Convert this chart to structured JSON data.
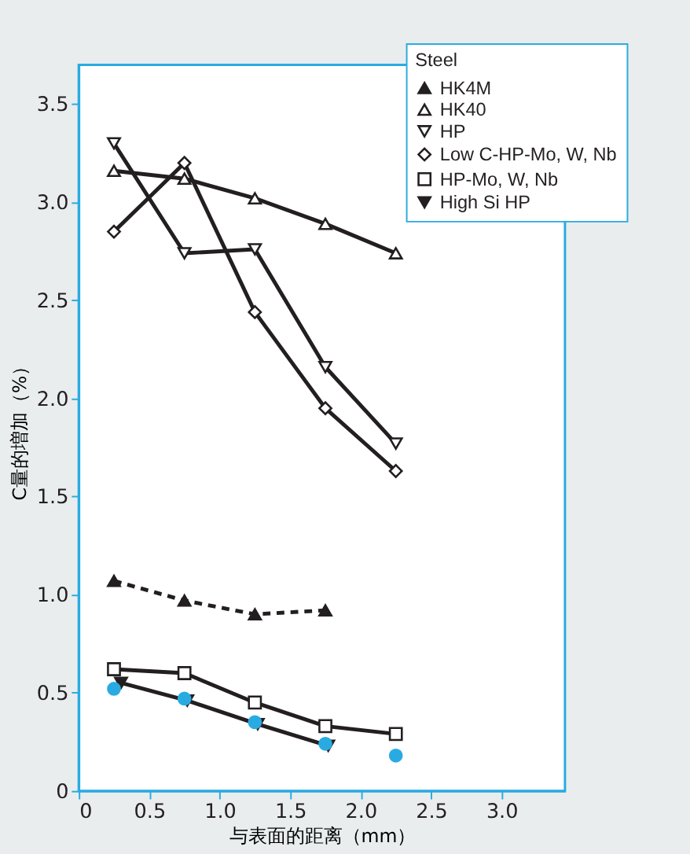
{
  "chart_data": {
    "type": "line",
    "xlabel": "与表面的距离（mm）",
    "ylabel": "C量的増加（%）",
    "legend_title": "Steel",
    "legend": "top right",
    "grid": false,
    "xlim": [
      0,
      3.45
    ],
    "xticks": [
      {
        "value": 0,
        "label": "0"
      },
      0.5,
      {
        "value": 1,
        "label": "1.0"
      },
      1.5,
      {
        "value": 2,
        "label": "2.0"
      },
      2.5,
      {
        "value": 3,
        "label": "3.0"
      }
    ],
    "ylim": [
      0,
      3.7
    ],
    "yticks": [
      {
        "value": 0,
        "label": "0"
      },
      0.5,
      {
        "value": 1,
        "label": "1.0"
      },
      1.5,
      {
        "value": 2,
        "label": "2.0"
      },
      2.5,
      {
        "value": 3,
        "label": "3.0"
      },
      3.5
    ],
    "series": [
      {
        "type": "scatter",
        "color": "#29abe2",
        "marker": "circle",
        "x": [
          0.25,
          0.75,
          1.25,
          1.75,
          2.25
        ],
        "values": [
          0.52,
          0.47,
          0.35,
          0.24,
          0.18
        ]
      },
      {
        "name": "HK4M",
        "color": "#231f20",
        "marker": "triangle",
        "line_style": "dashed",
        "x": [
          0.25,
          0.75,
          1.25,
          1.75
        ],
        "values": [
          1.07,
          0.97,
          0.9,
          0.92
        ]
      },
      {
        "name": "HK40",
        "color": "#231f20",
        "marker": "triangle-open",
        "line_style": "solid",
        "x": [
          0.25,
          0.75,
          1.25,
          1.75,
          2.25
        ],
        "values": [
          3.16,
          3.12,
          3.02,
          2.89,
          2.74
        ]
      },
      {
        "name": "HP",
        "color": "#231f20",
        "marker": "triangle-down-open",
        "line_style": "solid",
        "x": [
          0.25,
          0.75,
          1.25,
          1.75,
          2.25
        ],
        "values": [
          3.3,
          2.74,
          2.76,
          2.16,
          1.77
        ]
      },
      {
        "name": "Low C-HP-Mo, W, Nb",
        "color": "#231f20",
        "marker": "diamond-open",
        "line_style": "solid",
        "x": [
          0.25,
          0.75,
          1.25,
          1.75,
          2.25
        ],
        "values": [
          2.85,
          3.2,
          2.44,
          1.95,
          1.63
        ]
      },
      {
        "name": "HP-Mo, W, Nb",
        "color": "#231f20",
        "marker": "square-open",
        "line_style": "solid",
        "x": [
          0.25,
          0.75,
          1.25,
          1.75,
          2.25
        ],
        "values": [
          0.62,
          0.6,
          0.45,
          0.33,
          0.29
        ]
      },
      {
        "name": "High Si HP",
        "color": "#231f20",
        "marker": "triangle-down",
        "line_style": "solid",
        "x": [
          0.3,
          0.77,
          1.27,
          1.77
        ],
        "values": [
          0.55,
          0.46,
          0.34,
          0.23
        ]
      }
    ]
  }
}
